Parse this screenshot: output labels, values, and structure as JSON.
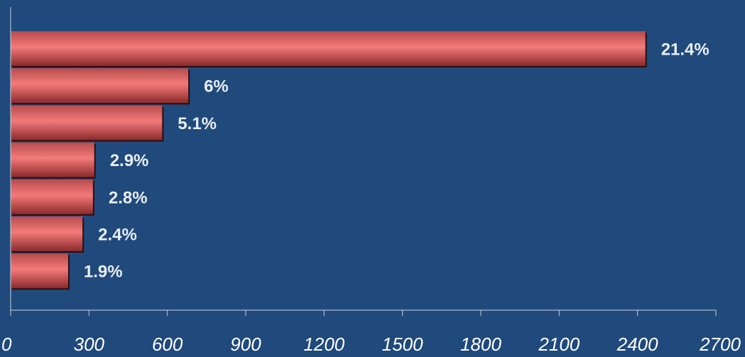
{
  "chart_data": {
    "type": "bar",
    "orientation": "horizontal",
    "title": "",
    "xlabel": "",
    "ylabel": "",
    "xlim": [
      0,
      2700
    ],
    "x_ticks": [
      0,
      300,
      600,
      900,
      1200,
      1500,
      1800,
      2100,
      2400,
      2700
    ],
    "values": [
      2430,
      680,
      580,
      320,
      315,
      275,
      220
    ],
    "data_labels": [
      "21.4%",
      "6%",
      "5.1%",
      "2.9%",
      "2.8%",
      "2.4%",
      "1.9%"
    ],
    "grid": false,
    "legend": "none",
    "colors": {
      "background": "#20497c",
      "bar_top": "#b74b4c",
      "bar_mid": "#f47a7a",
      "bar_bottom": "#8a2a2b",
      "axis": "#c8d2e0",
      "tick_text": "#ffffff",
      "data_label_text": "#e9eef6"
    }
  }
}
